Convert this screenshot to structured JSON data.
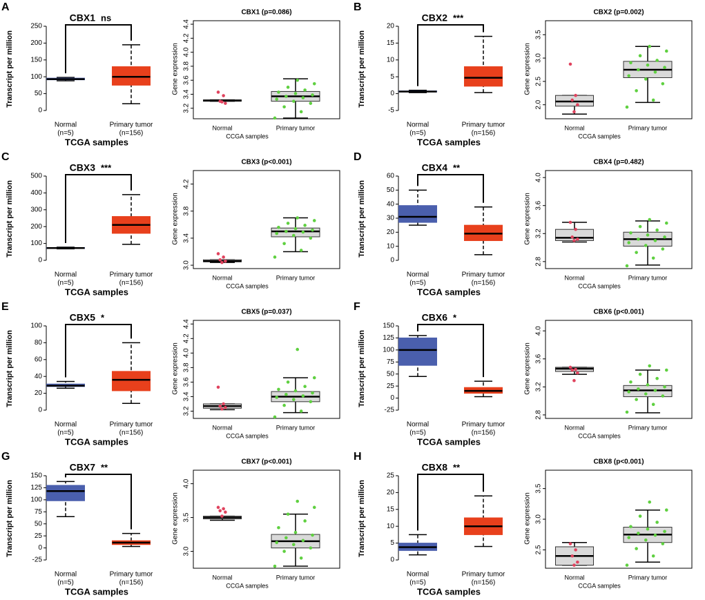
{
  "chart_data": [
    {
      "type": "box",
      "panel": "A",
      "title": "CBX1",
      "significance": "ns",
      "ylabel": "Transcript per million",
      "xlabel": "TCGA samples",
      "categories": [
        "Normal",
        "Primary tumor"
      ],
      "sublabels": [
        "(n=5)",
        "(n=156)"
      ],
      "ylim": [
        0,
        250
      ],
      "yticks": [
        0,
        50,
        100,
        150,
        200,
        250
      ],
      "box_colors": [
        "#4a5fad",
        "#e8401c"
      ],
      "boxes": [
        {
          "min": 88,
          "q1": 91,
          "median": 93,
          "q3": 96,
          "max": 98
        },
        {
          "min": 20,
          "q1": 75,
          "median": 100,
          "q3": 130,
          "max": 195
        }
      ]
    },
    {
      "type": "swarm",
      "title": "CBX1 (p=0.086)",
      "ylabel": "Gene expression",
      "xlabel": "CCGA samples",
      "categories": [
        "Normal",
        "Primary tumor"
      ],
      "ylim": [
        3.05,
        4.45
      ],
      "yticks": [
        3.2,
        3.4,
        3.6,
        3.8,
        {
          "value": 4,
          "label": "4.0"
        },
        4.2,
        4.4
      ],
      "box_colors": [
        "#d9d9d9",
        "#d9d9d9"
      ],
      "point_colors": [
        "#e0435e",
        "#5fd040"
      ],
      "boxes": [
        {
          "min": 3.3,
          "q1": 3.3,
          "median": 3.31,
          "q3": 3.32,
          "max": 3.32
        },
        {
          "min": 3.06,
          "q1": 3.3,
          "median": 3.37,
          "q3": 3.44,
          "max": 3.62
        }
      ],
      "points": [
        [
          3.43,
          3.38,
          3.3,
          3.27,
          3.29
        ],
        [
          3.06,
          3.15,
          3.22,
          3.27,
          3.3,
          3.33,
          3.35,
          3.37,
          3.39,
          3.41,
          3.43,
          3.46,
          3.5,
          3.55,
          3.6
        ]
      ]
    },
    {
      "type": "box",
      "panel": "B",
      "title": "CBX2",
      "significance": "***",
      "ylabel": "Transcript per million",
      "xlabel": "TCGA samples",
      "categories": [
        "Normal",
        "Primary tumor"
      ],
      "sublabels": [
        "(n=5)",
        "(n=156)"
      ],
      "ylim": [
        -5,
        20
      ],
      "yticks": [
        -5,
        0,
        5,
        10,
        15,
        20
      ],
      "box_colors": [
        "#4a5fad",
        "#e8401c"
      ],
      "boxes": [
        {
          "min": 0.3,
          "q1": 0.5,
          "median": 0.6,
          "q3": 0.8,
          "max": 1
        },
        {
          "min": 0.3,
          "q1": 2.2,
          "median": 4.7,
          "q3": 8,
          "max": 17
        }
      ]
    },
    {
      "type": "swarm",
      "title": "CBX2 (p=0.002)",
      "ylabel": "Gene expression",
      "xlabel": "CCGA samples",
      "categories": [
        "Normal",
        "Primary tumor"
      ],
      "ylim": [
        1.7,
        3.8
      ],
      "yticks": [
        {
          "value": 2,
          "label": "2.0"
        },
        2.5,
        {
          "value": 3,
          "label": "3.0"
        },
        3.5
      ],
      "box_colors": [
        "#d9d9d9",
        "#d9d9d9"
      ],
      "point_colors": [
        "#e0435e",
        "#5fd040"
      ],
      "boxes": [
        {
          "min": 1.8,
          "q1": 1.97,
          "median": 2.07,
          "q3": 2.2,
          "max": 2.2
        },
        {
          "min": 2.05,
          "q1": 2.58,
          "median": 2.75,
          "q3": 2.93,
          "max": 3.25
        }
      ],
      "points": [
        [
          2.87,
          2.2,
          2.1,
          2,
          1.85
        ],
        [
          1.95,
          2.1,
          2.3,
          2.45,
          2.55,
          2.62,
          2.7,
          2.75,
          2.8,
          2.85,
          2.9,
          2.95,
          3.05,
          3.15,
          3.25
        ]
      ]
    },
    {
      "type": "box",
      "panel": "C",
      "title": "CBX3",
      "significance": "***",
      "ylabel": "Transcript per million",
      "xlabel": "TCGA samples",
      "categories": [
        "Normal",
        "Primary tumor"
      ],
      "sublabels": [
        "(n=5)",
        "(n=156)"
      ],
      "ylim": [
        0,
        500
      ],
      "yticks": [
        0,
        100,
        200,
        300,
        400,
        500
      ],
      "box_colors": [
        "#4a5fad",
        "#e8401c"
      ],
      "boxes": [
        {
          "min": 68,
          "q1": 70,
          "median": 73,
          "q3": 76,
          "max": 78
        },
        {
          "min": 95,
          "q1": 160,
          "median": 210,
          "q3": 260,
          "max": 390
        }
      ]
    },
    {
      "type": "swarm",
      "title": "CBX3 (p<0.001)",
      "ylabel": "Gene expression",
      "xlabel": "CCGA samples",
      "categories": [
        "Normal",
        "Primary tumor"
      ],
      "ylim": [
        2.95,
        4.4
      ],
      "yticks": [
        {
          "value": 3,
          "label": "3.0"
        },
        3.4,
        3.8,
        4.2
      ],
      "box_colors": [
        "#d9d9d9",
        "#d9d9d9"
      ],
      "point_colors": [
        "#e0435e",
        "#5fd040"
      ],
      "boxes": [
        {
          "min": 3.04,
          "q1": 3.05,
          "median": 3.06,
          "q3": 3.08,
          "max": 3.08
        },
        {
          "min": 3.2,
          "q1": 3.42,
          "median": 3.5,
          "q3": 3.55,
          "max": 3.7
        }
      ],
      "points": [
        [
          3.17,
          3.12,
          3.08,
          3.06,
          3.04
        ],
        [
          3.12,
          3.22,
          3.32,
          3.4,
          3.44,
          3.47,
          3.49,
          3.5,
          3.52,
          3.54,
          3.56,
          3.59,
          3.62,
          3.66,
          3.7
        ]
      ]
    },
    {
      "type": "box",
      "panel": "D",
      "title": "CBX4",
      "significance": "**",
      "ylabel": "Transcript per million",
      "xlabel": "TCGA samples",
      "categories": [
        "Normal",
        "Primary tumor"
      ],
      "sublabels": [
        "(n=5)",
        "(n=156)"
      ],
      "ylim": [
        0,
        60
      ],
      "yticks": [
        0,
        10,
        20,
        30,
        40,
        50,
        60
      ],
      "box_colors": [
        "#4a5fad",
        "#e8401c"
      ],
      "boxes": [
        {
          "min": 25,
          "q1": 27,
          "median": 31,
          "q3": 39,
          "max": 50
        },
        {
          "min": 4,
          "q1": 14,
          "median": 19,
          "q3": 25,
          "max": 38
        }
      ]
    },
    {
      "type": "swarm",
      "title": "CBX4 (p=0.482)",
      "ylabel": "Gene expression",
      "xlabel": "CCGA samples",
      "categories": [
        "Normal",
        "Primary tumor"
      ],
      "ylim": [
        2.7,
        4.1
      ],
      "yticks": [
        2.8,
        3.2,
        3.6,
        {
          "value": 4,
          "label": "4.0"
        }
      ],
      "box_colors": [
        "#d9d9d9",
        "#d9d9d9"
      ],
      "point_colors": [
        "#e0435e",
        "#5fd040"
      ],
      "boxes": [
        {
          "min": 3.08,
          "q1": 3.1,
          "median": 3.14,
          "q3": 3.26,
          "max": 3.36
        },
        {
          "min": 2.75,
          "q1": 3.02,
          "median": 3.12,
          "q3": 3.22,
          "max": 3.38
        }
      ],
      "points": [
        [
          3.36,
          3.26,
          3.15,
          3.12,
          3.1
        ],
        [
          2.74,
          2.85,
          2.93,
          2.98,
          3.03,
          3.07,
          3.1,
          3.12,
          3.15,
          3.18,
          3.21,
          3.25,
          3.3,
          3.35,
          3.4
        ]
      ]
    },
    {
      "type": "box",
      "panel": "E",
      "title": "CBX5",
      "significance": "*",
      "ylabel": "Transcript per million",
      "xlabel": "TCGA samples",
      "categories": [
        "Normal",
        "Primary tumor"
      ],
      "sublabels": [
        "(n=5)",
        "(n=156)"
      ],
      "ylim": [
        0,
        100
      ],
      "yticks": [
        0,
        20,
        40,
        60,
        80,
        100
      ],
      "box_colors": [
        "#4a5fad",
        "#e8401c"
      ],
      "boxes": [
        {
          "min": 26,
          "q1": 28,
          "median": 29,
          "q3": 31,
          "max": 34
        },
        {
          "min": 8,
          "q1": 23,
          "median": 36,
          "q3": 46,
          "max": 80
        }
      ]
    },
    {
      "type": "swarm",
      "title": "CBX5 (p=0.037)",
      "ylabel": "Gene expression",
      "xlabel": "CCGA samples",
      "categories": [
        "Normal",
        "Primary tumor"
      ],
      "ylim": [
        3.1,
        4.45
      ],
      "yticks": [
        3.2,
        3.4,
        3.6,
        3.8,
        {
          "value": 4,
          "label": "4.0"
        },
        4.2,
        4.4
      ],
      "box_colors": [
        "#d9d9d9",
        "#d9d9d9"
      ],
      "point_colors": [
        "#e0435e",
        "#5fd040"
      ],
      "boxes": [
        {
          "min": 3.22,
          "q1": 3.24,
          "median": 3.27,
          "q3": 3.3,
          "max": 3.3
        },
        {
          "min": 3.18,
          "q1": 3.33,
          "median": 3.4,
          "q3": 3.47,
          "max": 3.66
        }
      ],
      "points": [
        [
          3.53,
          3.3,
          3.27,
          3.25,
          3.23
        ],
        [
          3.12,
          3.2,
          3.28,
          3.33,
          3.36,
          3.39,
          3.41,
          3.43,
          3.45,
          3.48,
          3.5,
          3.54,
          3.6,
          3.66,
          4.05
        ]
      ]
    },
    {
      "type": "box",
      "panel": "F",
      "title": "CBX6",
      "significance": "*",
      "ylabel": "Transcript per million",
      "xlabel": "TCGA samples",
      "categories": [
        "Normal",
        "Primary tumor"
      ],
      "sublabels": [
        "(n=5)",
        "(n=156)"
      ],
      "ylim": [
        -25,
        150
      ],
      "yticks": [
        -25,
        0,
        25,
        50,
        75,
        100,
        125,
        150
      ],
      "box_colors": [
        "#4a5fad",
        "#e8401c"
      ],
      "boxes": [
        {
          "min": 45,
          "q1": 68,
          "median": 100,
          "q3": 125,
          "max": 130
        },
        {
          "min": 3,
          "q1": 10,
          "median": 15,
          "q3": 22,
          "max": 35
        }
      ]
    },
    {
      "type": "swarm",
      "title": "CBX6 (p<0.001)",
      "ylabel": "Gene expression",
      "xlabel": "CCGA samples",
      "categories": [
        "Normal",
        "Primary tumor"
      ],
      "ylim": [
        2.75,
        4.15
      ],
      "yticks": [
        2.8,
        3.2,
        3.6,
        {
          "value": 4,
          "label": "4.0"
        }
      ],
      "box_colors": [
        "#d9d9d9",
        "#d9d9d9"
      ],
      "point_colors": [
        "#e0435e",
        "#5fd040"
      ],
      "boxes": [
        {
          "min": 3.38,
          "q1": 3.42,
          "median": 3.46,
          "q3": 3.48,
          "max": 3.48
        },
        {
          "min": 2.83,
          "q1": 3.06,
          "median": 3.15,
          "q3": 3.22,
          "max": 3.44
        }
      ],
      "points": [
        [
          3.48,
          3.45,
          3.44,
          3.4,
          3.29
        ],
        [
          2.84,
          2.95,
          3.02,
          3.07,
          3.1,
          3.13,
          3.15,
          3.17,
          3.2,
          3.23,
          3.27,
          3.32,
          3.38,
          3.44,
          3.5
        ]
      ]
    },
    {
      "type": "box",
      "panel": "G",
      "title": "CBX7",
      "significance": "**",
      "ylabel": "Transcript per million",
      "xlabel": "TCGA samples",
      "categories": [
        "Normal",
        "Primary tumor"
      ],
      "sublabels": [
        "(n=5)",
        "(n=156)"
      ],
      "ylim": [
        -25,
        150
      ],
      "yticks": [
        -25,
        0,
        25,
        50,
        75,
        100,
        125,
        150
      ],
      "box_colors": [
        "#4a5fad",
        "#e8401c"
      ],
      "boxes": [
        {
          "min": 65,
          "q1": 98,
          "median": 118,
          "q3": 130,
          "max": 138
        },
        {
          "min": 3,
          "q1": 7,
          "median": 11,
          "q3": 15,
          "max": 30
        }
      ]
    },
    {
      "type": "swarm",
      "title": "CBX7 (p<0.001)",
      "ylabel": "Gene expression",
      "xlabel": "CCGA samples",
      "categories": [
        "Normal",
        "Primary tumor"
      ],
      "ylim": [
        2.75,
        4.2
      ],
      "yticks": [
        {
          "value": 3,
          "label": "3.0"
        },
        3.5,
        {
          "value": 4,
          "label": "4.0"
        }
      ],
      "box_colors": [
        "#d9d9d9",
        "#d9d9d9"
      ],
      "point_colors": [
        "#e0435e",
        "#5fd040"
      ],
      "boxes": [
        {
          "min": 3.46,
          "q1": 3.48,
          "median": 3.5,
          "q3": 3.52,
          "max": 3.52
        },
        {
          "min": 2.78,
          "q1": 3.05,
          "median": 3.15,
          "q3": 3.25,
          "max": 3.55
        }
      ],
      "points": [
        [
          3.65,
          3.63,
          3.6,
          3.58,
          3.52
        ],
        [
          2.78,
          2.9,
          3,
          3.05,
          3.1,
          3.13,
          3.16,
          3.2,
          3.24,
          3.28,
          3.35,
          3.45,
          3.55,
          3.65,
          3.74
        ]
      ]
    },
    {
      "type": "box",
      "panel": "H",
      "title": "CBX8",
      "significance": "**",
      "ylabel": "Transcript per million",
      "xlabel": "TCGA samples",
      "categories": [
        "Normal",
        "Primary tumor"
      ],
      "sublabels": [
        "(n=5)",
        "(n=156)"
      ],
      "ylim": [
        0,
        25
      ],
      "yticks": [
        0,
        5,
        10,
        15,
        20,
        25
      ],
      "box_colors": [
        "#4a5fad",
        "#e8401c"
      ],
      "boxes": [
        {
          "min": 1.5,
          "q1": 2.8,
          "median": 3.8,
          "q3": 5,
          "max": 7.5
        },
        {
          "min": 4,
          "q1": 7.5,
          "median": 10,
          "q3": 12.5,
          "max": 19
        }
      ]
    },
    {
      "type": "swarm",
      "title": "CBX8 (p<0.001)",
      "ylabel": "Gene expression",
      "xlabel": "CCGA samples",
      "categories": [
        "Normal",
        "Primary tumor"
      ],
      "ylim": [
        2.2,
        3.8
      ],
      "yticks": [
        2.5,
        {
          "value": 3,
          "label": "3.0"
        },
        3.5
      ],
      "box_colors": [
        "#d9d9d9",
        "#d9d9d9"
      ],
      "point_colors": [
        "#e0435e",
        "#5fd040"
      ],
      "boxes": [
        {
          "min": 2.25,
          "q1": 2.25,
          "median": 2.4,
          "q3": 2.55,
          "max": 2.62
        },
        {
          "min": 2.3,
          "q1": 2.62,
          "median": 2.75,
          "q3": 2.87,
          "max": 3.15
        }
      ],
      "points": [
        [
          2.6,
          2.5,
          2.4,
          2.3,
          2.25
        ],
        [
          2.25,
          2.4,
          2.52,
          2.6,
          2.66,
          2.7,
          2.74,
          2.77,
          2.8,
          2.84,
          2.88,
          2.95,
          3.05,
          3.15,
          3.28
        ]
      ]
    }
  ]
}
